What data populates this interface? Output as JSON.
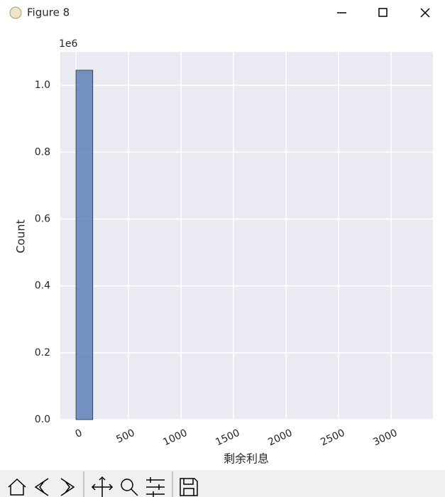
{
  "window": {
    "title": "Figure 8"
  },
  "chart_data": {
    "type": "histogram",
    "x_label": "剩余利息",
    "y_label": "Count",
    "y_offset_label": "1e6",
    "bins": [
      0,
      160,
      320,
      480,
      640,
      800,
      960,
      1120,
      1280,
      1440,
      1600,
      1760,
      1920,
      2080,
      2240,
      2400,
      2560,
      2720,
      2880,
      3040,
      3200
    ],
    "counts": [
      1.045,
      0,
      0,
      0,
      0,
      0,
      0,
      0,
      0,
      0,
      0,
      0,
      0,
      0,
      0,
      0,
      0,
      0,
      0,
      0
    ],
    "color": "#4c72b0",
    "xlim": [
      -149,
      3399
    ],
    "xticks": [
      0,
      500,
      1000,
      1500,
      2000,
      2500,
      3000
    ],
    "ylim": [
      0,
      1.1
    ],
    "yticks": [
      {
        "value": 0,
        "label": "0.0"
      },
      {
        "value": 0.2,
        "label": "0.2"
      },
      {
        "value": 0.4,
        "label": "0.4"
      },
      {
        "value": 0.6,
        "label": "0.6"
      },
      {
        "value": 0.8,
        "label": "0.8"
      },
      {
        "value": 1,
        "label": "1.0"
      }
    ],
    "grid": true
  }
}
